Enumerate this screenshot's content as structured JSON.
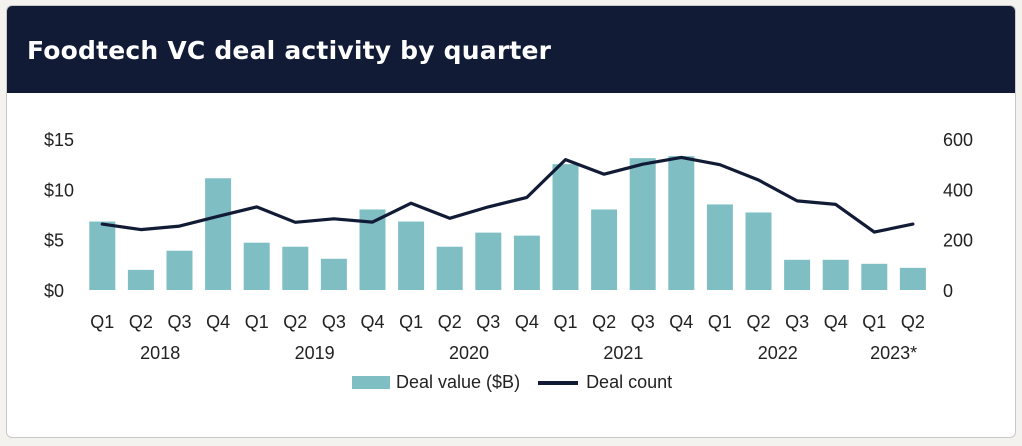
{
  "title": "Foodtech VC deal activity by quarter",
  "legend": {
    "bar_label": "Deal value ($B)",
    "line_label": "Deal count"
  },
  "colors": {
    "bar": "#7fbfc4",
    "line": "#121b36",
    "header": "#121b36"
  },
  "chart_data": {
    "type": "bar",
    "title": "Foodtech VC deal activity by quarter",
    "categories": [
      "Q1",
      "Q2",
      "Q3",
      "Q4",
      "Q1",
      "Q2",
      "Q3",
      "Q4",
      "Q1",
      "Q2",
      "Q3",
      "Q4",
      "Q1",
      "Q2",
      "Q3",
      "Q4",
      "Q1",
      "Q2",
      "Q3",
      "Q4",
      "Q1",
      "Q2"
    ],
    "year_labels": [
      "2018",
      "2019",
      "2020",
      "2021",
      "2022",
      "2023*"
    ],
    "series": [
      {
        "name": "Deal value ($B)",
        "type": "bar",
        "axis": "left",
        "values": [
          6.8,
          2.0,
          3.9,
          11.1,
          4.7,
          4.3,
          3.1,
          8.0,
          6.8,
          4.3,
          5.7,
          5.4,
          12.5,
          8.0,
          13.1,
          13.3,
          8.5,
          7.7,
          3.0,
          3.0,
          2.6,
          2.2
        ]
      },
      {
        "name": "Deal count",
        "type": "line",
        "axis": "right",
        "values": [
          262,
          240,
          254,
          293,
          330,
          269,
          283,
          270,
          345,
          285,
          330,
          368,
          518,
          460,
          500,
          527,
          498,
          437,
          354,
          340,
          230,
          262
        ]
      }
    ],
    "y_left": {
      "ticks": [
        "$0",
        "$5",
        "$10",
        "$15"
      ],
      "ylim": [
        0,
        15
      ]
    },
    "y_right": {
      "ticks": [
        "0",
        "200",
        "400",
        "600"
      ],
      "ylim": [
        0,
        600
      ]
    }
  }
}
